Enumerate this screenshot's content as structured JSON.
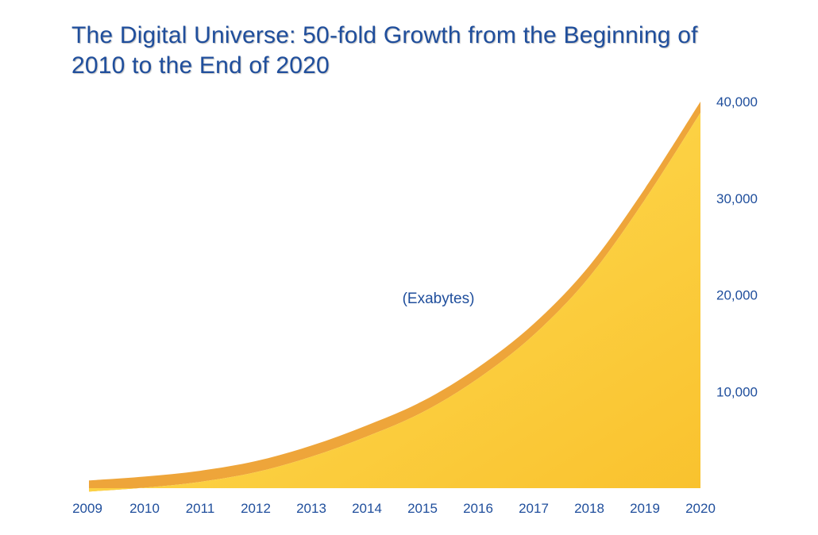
{
  "title": {
    "line1": "The Digital Universe: 50-fold Growth from the Beginning of",
    "line2": "2010 to the End of 2020"
  },
  "chart_data": {
    "type": "area",
    "title": "The Digital Universe: 50-fold Growth from the Beginning of 2010 to the End of 2020",
    "annotation": "(Exabytes)",
    "x": [
      "2009",
      "2010",
      "2011",
      "2012",
      "2013",
      "2014",
      "2015",
      "2016",
      "2017",
      "2018",
      "2019",
      "2020"
    ],
    "values": [
      800,
      1200,
      1800,
      2800,
      4400,
      6500,
      9000,
      12500,
      17000,
      23000,
      31000,
      40000
    ],
    "y_ticks": [
      "10,000",
      "20,000",
      "30,000",
      "40,000"
    ],
    "y_tick_values": [
      10000,
      20000,
      30000,
      40000
    ],
    "ylim": [
      0,
      40000
    ],
    "y_axis_position": "right",
    "grid": false,
    "legend": "none",
    "colors": {
      "area_fill_light": "#ffe15a",
      "area_fill_dark": "#f9c22e",
      "area_edge": "#eea53a",
      "text": "#1f4e9c"
    }
  }
}
